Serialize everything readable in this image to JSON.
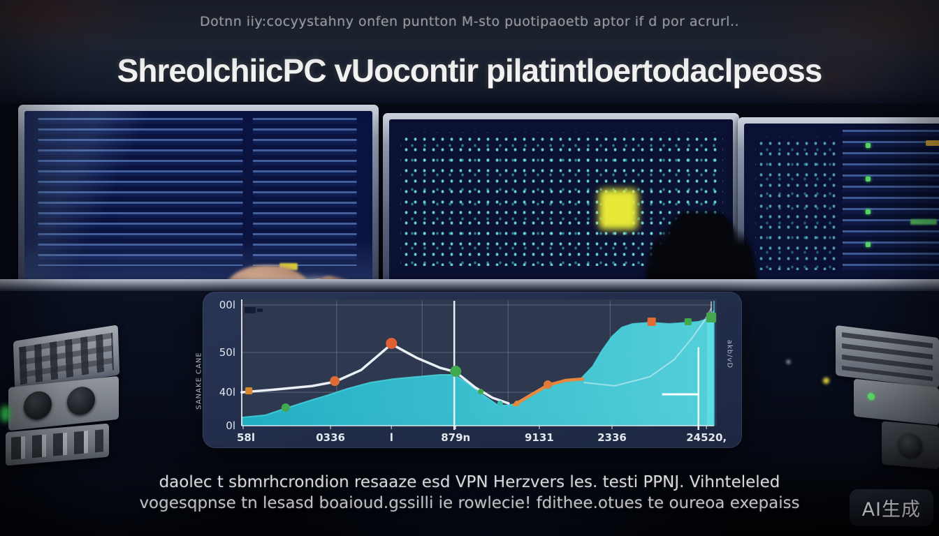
{
  "header": {
    "tagline": "Dotnn iiy:cocyystahny onfen puntton M-sto puotipaoetb aptor if d por acrurl..",
    "title": "ShreolchiicPC vUocontir pilatintloertodaclpeoss"
  },
  "footer": {
    "line1": "daolec t sbmrhcrondion resaaze esd VPN Herzvers les. testi PPNJ. Vihnteleled",
    "line2": "vogesqpnse tn lesasd boaioud.gssilli ie rowlecie! fdithee.otues te oureoa exepaiss",
    "watermark": "AI生成"
  },
  "chart_data": {
    "type": "area",
    "title": "",
    "xlabel": "",
    "ylabel_left_rotated": "SANAKE CANE",
    "ylabel_right_rotated": "akb/vD",
    "ylim": [
      0,
      100
    ],
    "grid": true,
    "legend": "none",
    "y_ticks": [
      {
        "label": "00l",
        "f": 1.0
      },
      {
        "label": "50l",
        "f": 0.607
      },
      {
        "label": "40l",
        "f": 0.277
      },
      {
        "label": "0l",
        "f": 0.0
      }
    ],
    "x_ticks": [
      {
        "label": "58l",
        "f": 0.003
      },
      {
        "label": "0336",
        "f": 0.188
      },
      {
        "label": "l",
        "f": 0.317
      },
      {
        "label": "879n",
        "f": 0.453
      },
      {
        "label": "9131",
        "f": 0.63
      },
      {
        "label": "2336",
        "f": 0.784
      },
      {
        "label": "24520,",
        "f": 0.984
      }
    ],
    "grid_v_faint": [
      0.201,
      0.382,
      0.564,
      0.78
    ],
    "grid_v_bright": [
      0.45,
      0.967
    ],
    "series": [
      {
        "name": "cyan-area",
        "type": "area",
        "color_left": "#23b2c7",
        "color_right": "#55d4de",
        "edge": "#49d6de",
        "points": [
          [
            0.0,
            6.9
          ],
          [
            0.05,
            8.7
          ],
          [
            0.093,
            14.5
          ],
          [
            0.149,
            21.4
          ],
          [
            0.183,
            25.4
          ],
          [
            0.223,
            30.6
          ],
          [
            0.272,
            35.8
          ],
          [
            0.321,
            38.7
          ],
          [
            0.371,
            40.5
          ],
          [
            0.42,
            42.2
          ],
          [
            0.45,
            42.2
          ],
          [
            0.476,
            35.8
          ],
          [
            0.503,
            27.7
          ],
          [
            0.524,
            22.0
          ],
          [
            0.541,
            17.3
          ],
          [
            0.559,
            16.8
          ],
          [
            0.578,
            17.9
          ],
          [
            0.601,
            22.0
          ],
          [
            0.627,
            28.9
          ],
          [
            0.648,
            33.5
          ],
          [
            0.686,
            37.0
          ],
          [
            0.719,
            39.3
          ],
          [
            0.743,
            49.1
          ],
          [
            0.763,
            62.4
          ],
          [
            0.784,
            74.0
          ],
          [
            0.805,
            81.5
          ],
          [
            0.828,
            84.4
          ],
          [
            0.864,
            85.5
          ],
          [
            0.905,
            84.4
          ],
          [
            0.945,
            85.5
          ],
          [
            0.967,
            86.1
          ],
          [
            0.985,
            88.4
          ],
          [
            0.997,
            93.6
          ],
          [
            1.0,
            95.4
          ]
        ]
      },
      {
        "name": "white-line",
        "type": "line",
        "color": "#eaeef5",
        "width": 3.5,
        "points": [
          [
            0.0,
            27.7
          ],
          [
            0.075,
            30.1
          ],
          [
            0.149,
            32.9
          ],
          [
            0.197,
            36.4
          ],
          [
            0.253,
            46.2
          ],
          [
            0.317,
            67.6
          ],
          [
            0.371,
            56.1
          ],
          [
            0.42,
            48.0
          ],
          [
            0.453,
            44.5
          ],
          [
            0.494,
            31.8
          ],
          [
            0.531,
            23.1
          ],
          [
            0.565,
            18.5
          ]
        ]
      },
      {
        "name": "orange-line",
        "type": "line",
        "color": "#e8883c",
        "width": 4.5,
        "points": [
          [
            0.577,
            17.3
          ],
          [
            0.612,
            25.4
          ],
          [
            0.648,
            33.5
          ],
          [
            0.686,
            37.6
          ],
          [
            0.722,
            38.7
          ]
        ]
      },
      {
        "name": "faint-arc",
        "type": "line",
        "color": "rgba(255,255,255,0.45)",
        "width": 2,
        "points": [
          [
            0.725,
            35.8
          ],
          [
            0.79,
            33.0
          ],
          [
            0.864,
            40.5
          ],
          [
            0.916,
            54.9
          ],
          [
            0.953,
            72.3
          ],
          [
            0.979,
            86.7
          ],
          [
            0.994,
            97.1
          ]
        ]
      }
    ],
    "markers": [
      {
        "x": 0.015,
        "v": 28.9,
        "color": "#d8892f",
        "shape": "square",
        "r": 5
      },
      {
        "x": 0.093,
        "v": 15.0,
        "color": "#43a94f",
        "shape": "circle",
        "r": 6
      },
      {
        "x": 0.197,
        "v": 37.0,
        "color": "#e06b35",
        "shape": "circle",
        "r": 7
      },
      {
        "x": 0.317,
        "v": 68.2,
        "color": "#e05f35",
        "shape": "circle",
        "r": 8
      },
      {
        "x": 0.453,
        "v": 45.1,
        "color": "#43a94f",
        "shape": "circle",
        "r": 8
      },
      {
        "x": 0.506,
        "v": 28.3,
        "color": "#43a94f",
        "shape": "circle",
        "r": 4
      },
      {
        "x": 0.547,
        "v": 18.5,
        "color": "#35c0b0",
        "shape": "circle",
        "r": 4
      },
      {
        "x": 0.583,
        "v": 18.5,
        "color": "#e08a3c",
        "shape": "circle",
        "r": 4
      },
      {
        "x": 0.648,
        "v": 34.1,
        "color": "#e07a35",
        "shape": "circle",
        "r": 6
      },
      {
        "x": 0.868,
        "v": 86.1,
        "color": "#e06b35",
        "shape": "square",
        "r": 6
      },
      {
        "x": 0.945,
        "v": 86.1,
        "color": "#43a94f",
        "shape": "square",
        "r": 5
      },
      {
        "x": 0.994,
        "v": 89.6,
        "color": "#43a94f",
        "shape": "square",
        "r": 7
      }
    ],
    "annotations": {
      "bright_vline_right": {
        "x": 0.967,
        "v1": 0,
        "v2": 65
      },
      "h_segment": {
        "v": 26,
        "x1": 0.89,
        "x2": 0.967
      },
      "right_edge_band": {
        "x1": 0.985,
        "x2": 1.0,
        "color": "#5fe0e8"
      },
      "top_right_tick": {
        "x": 0.994,
        "v1": 90,
        "v2": 103
      }
    },
    "colors": {
      "panel_bg": "#222d4a",
      "plot_bg": "#2e3950",
      "gridline": "rgba(255,255,255,0.22)",
      "bright_line": "#f4f7fa",
      "axis": "rgba(255,255,255,0.8)"
    }
  }
}
